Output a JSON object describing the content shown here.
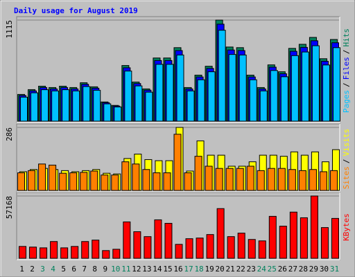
{
  "chart_data": [
    {
      "type": "bar",
      "title": "Daily usage for August 2019",
      "ylim": [
        0,
        1115
      ],
      "yticks": [
        1115
      ],
      "legend_separator": "/",
      "series": [
        {
          "name": "Hits",
          "color": "#00805c",
          "values": [
            295,
            348,
            386,
            371,
            386,
            371,
            424,
            379,
            212,
            174,
            614,
            432,
            356,
            697,
            697,
            811,
            371,
            508,
            606,
            1115,
            818,
            811,
            508,
            371,
            621,
            545,
            803,
            848,
            924,
            689,
            901
          ]
        },
        {
          "name": "Files",
          "color": "#0000ff",
          "values": [
            283,
            334,
            371,
            356,
            371,
            356,
            407,
            364,
            204,
            167,
            589,
            415,
            342,
            669,
            669,
            779,
            356,
            488,
            582,
            1070,
            785,
            779,
            488,
            356,
            596,
            523,
            771,
            814,
            887,
            661,
            865
          ]
        },
        {
          "name": "Pages",
          "color": "#00c0ff",
          "values": [
            265,
            313,
            347,
            334,
            347,
            334,
            382,
            341,
            191,
            157,
            553,
            389,
            320,
            627,
            627,
            730,
            334,
            457,
            545,
            1003,
            736,
            730,
            457,
            334,
            559,
            490,
            723,
            763,
            832,
            620,
            811
          ]
        }
      ]
    },
    {
      "type": "bar",
      "ylim": [
        0,
        286
      ],
      "yticks": [
        286
      ],
      "legend_separator": "/",
      "series": [
        {
          "name": "Visits",
          "color": "#ffff00",
          "values": [
            85,
            95,
            100,
            95,
            90,
            85,
            90,
            95,
            78,
            75,
            145,
            165,
            140,
            135,
            135,
            286,
            88,
            225,
            160,
            160,
            110,
            110,
            130,
            160,
            160,
            155,
            175,
            160,
            175,
            130,
            185
          ]
        },
        {
          "name": "Sites",
          "color": "#ff8000",
          "values": [
            80,
            90,
            120,
            115,
            78,
            80,
            82,
            88,
            70,
            70,
            130,
            120,
            95,
            80,
            80,
            255,
            80,
            155,
            110,
            100,
            100,
            100,
            110,
            90,
            100,
            100,
            95,
            90,
            95,
            85,
            90
          ]
        }
      ]
    },
    {
      "type": "bar",
      "ylim": [
        0,
        57168
      ],
      "yticks": [
        57168
      ],
      "categories": [
        "1",
        "2",
        "3",
        "4",
        "5",
        "6",
        "7",
        "8",
        "9",
        "10",
        "11",
        "12",
        "13",
        "14",
        "15",
        "16",
        "17",
        "18",
        "19",
        "20",
        "21",
        "22",
        "23",
        "24",
        "25",
        "26",
        "27",
        "28",
        "29",
        "30",
        "31"
      ],
      "category_colors": [
        "#000000",
        "#000000",
        "#00805c",
        "#00805c",
        "#000000",
        "#000000",
        "#000000",
        "#000000",
        "#000000",
        "#00805c",
        "#00805c",
        "#000000",
        "#000000",
        "#000000",
        "#000000",
        "#000000",
        "#00805c",
        "#00805c",
        "#000000",
        "#000000",
        "#000000",
        "#000000",
        "#000000",
        "#00805c",
        "#00805c",
        "#000000",
        "#000000",
        "#000000",
        "#000000",
        "#000000",
        "#00805c"
      ],
      "series": [
        {
          "name": "KBytes",
          "color": "#ff0000",
          "values": [
            10900,
            10300,
            9600,
            15400,
            9600,
            10900,
            15400,
            16700,
            7100,
            8300,
            33400,
            24400,
            19900,
            35300,
            32100,
            12800,
            18000,
            18600,
            21800,
            45600,
            19900,
            23100,
            17300,
            16000,
            38500,
            29500,
            42400,
            37200,
            57168,
            28200,
            36600
          ]
        }
      ]
    }
  ]
}
